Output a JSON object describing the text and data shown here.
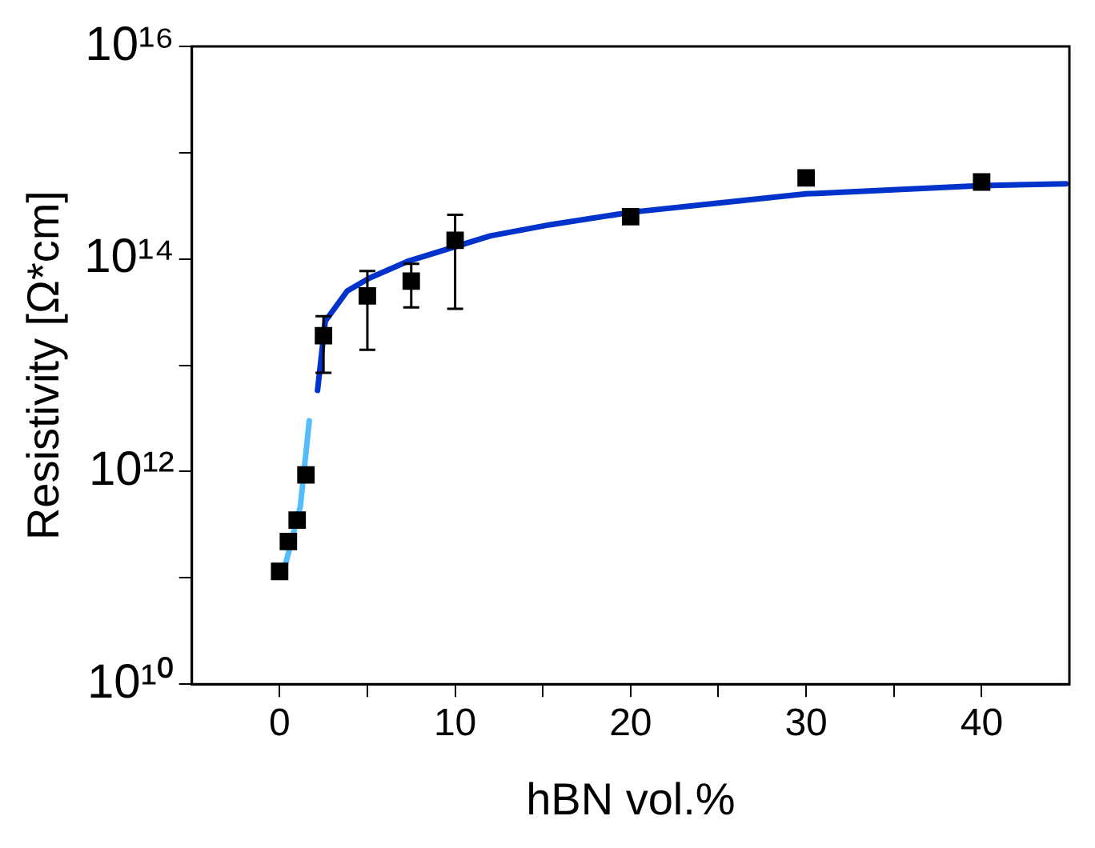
{
  "chart_data": {
    "type": "scatter",
    "xlabel": "hBN vol.%",
    "ylabel": "Resistivity [Ω*cm]",
    "log": "y",
    "grid": false,
    "legend": false,
    "marker": "square",
    "xlim": [
      -5,
      45
    ],
    "xticks": [
      0,
      {
        "value": 5,
        "label": null
      },
      10,
      {
        "value": 15,
        "label": null
      },
      20,
      {
        "value": 25,
        "label": null
      },
      30,
      {
        "value": 35,
        "label": null
      },
      40
    ],
    "ylim": [
      10000000000.0,
      1e+16
    ],
    "yticks": [
      {
        "value": 10000000000.0,
        "label": "10¹⁰"
      },
      {
        "value": 100000000000.0,
        "label": null
      },
      {
        "value": 1000000000000.0,
        "label": "10¹²"
      },
      {
        "value": 10000000000000.0,
        "label": null
      },
      {
        "value": 100000000000000.0,
        "label": "10¹⁴"
      },
      {
        "value": 1000000000000000.0,
        "label": null
      },
      {
        "value": 1e+16,
        "label": "10¹⁶"
      }
    ],
    "series": [
      {
        "color": "#000000",
        "x": [
          0,
          0.5,
          1,
          1.5,
          2.5,
          5,
          7.5,
          10,
          20,
          30,
          40
        ],
        "values": [
          115000000000.0,
          220000000000.0,
          350000000000.0,
          930000000000.0,
          19000000000000.0,
          45000000000000.0,
          62000000000000.0,
          150000000000000.0,
          250000000000000.0,
          580000000000000.0,
          530000000000000.0
        ],
        "errors": [
          null,
          null,
          null,
          null,
          [
            8500000000000.0,
            29000000000000.0
          ],
          [
            14000000000000.0,
            77000000000000.0
          ],
          [
            35000000000000.0,
            90000000000000.0
          ],
          [
            34000000000000.0,
            260000000000000.0
          ],
          null,
          null,
          null
        ]
      },
      {
        "type": "line",
        "color": "#55bbff",
        "marker": "none",
        "x": [
          0.34,
          1.18,
          1.69
        ],
        "values": [
          135000000000.0,
          470000000000.0,
          3000000000000.0
        ]
      },
      {
        "type": "line",
        "color": "#0033cc",
        "marker": "none",
        "x": [
          2.16,
          2.6,
          3.85,
          5.1,
          7.3,
          12,
          15.4,
          20,
          30,
          40,
          44.8
        ],
        "values": [
          5800000000000.0,
          26000000000000.0,
          50000000000000.0,
          66000000000000.0,
          95000000000000.0,
          165000000000000.0,
          210000000000000.0,
          275000000000000.0,
          410000000000000.0,
          490000000000000.0,
          510000000000000.0
        ]
      }
    ]
  }
}
